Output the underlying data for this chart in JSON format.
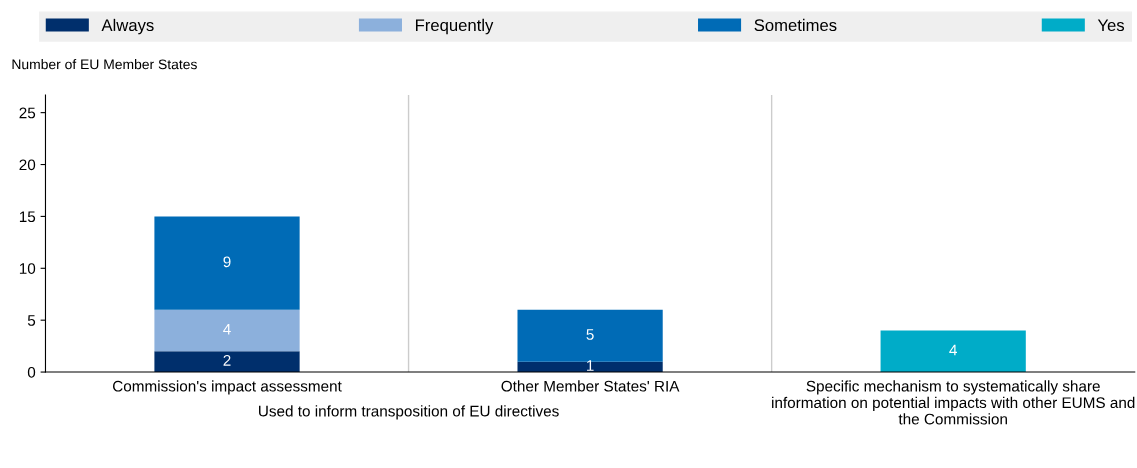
{
  "chart_data": {
    "type": "bar",
    "stacked": true,
    "ylabel": "Number of EU Member States",
    "categories": [
      "Commission's impact assessment",
      "Other Member States' RIA",
      "Specific mechanism to systematically share information on potential impacts with other EUMS and the Commission"
    ],
    "series": [
      {
        "name": "Always",
        "color": "#002f6c",
        "values": [
          2,
          1,
          null
        ]
      },
      {
        "name": "Frequently",
        "color": "#8cb0dc",
        "values": [
          4,
          null,
          null
        ]
      },
      {
        "name": "Sometimes",
        "color": "#006bb6",
        "values": [
          9,
          5,
          null
        ]
      },
      {
        "name": "Yes",
        "color": "#00acc8",
        "values": [
          null,
          null,
          4
        ]
      }
    ],
    "ylim": [
      0,
      26.7
    ],
    "yticks": [
      0,
      5,
      10,
      15,
      20,
      25
    ],
    "annotations": [
      "Used to inform transposition of EU directives"
    ],
    "data_labels": true,
    "legend": "top",
    "grid": "x"
  }
}
